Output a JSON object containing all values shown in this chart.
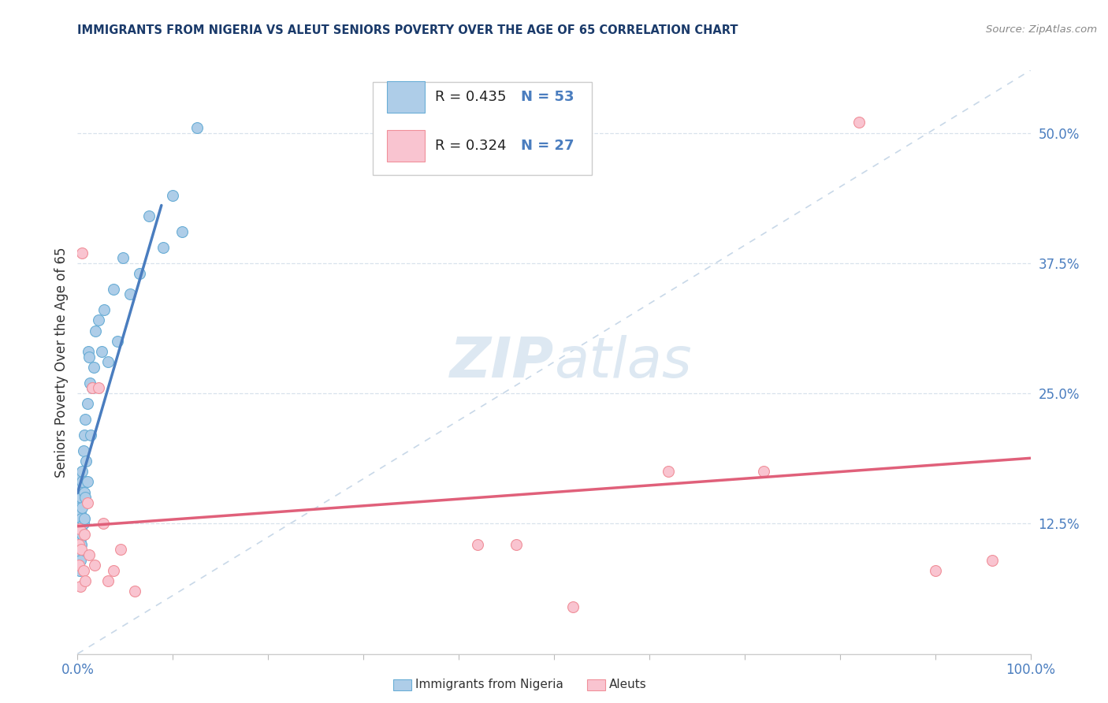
{
  "title": "IMMIGRANTS FROM NIGERIA VS ALEUT SENIORS POVERTY OVER THE AGE OF 65 CORRELATION CHART",
  "source": "Source: ZipAtlas.com",
  "ylabel": "Seniors Poverty Over the Age of 65",
  "legend_label1": "Immigrants from Nigeria",
  "legend_label2": "Aleuts",
  "legend_r1": "R = 0.435",
  "legend_n1": "N = 53",
  "legend_r2": "R = 0.324",
  "legend_n2": "N = 27",
  "color_blue_fill": "#aecde8",
  "color_blue_edge": "#6aaed6",
  "color_pink_fill": "#f9c4d0",
  "color_pink_edge": "#f0909a",
  "color_blue_line": "#4a7dbf",
  "color_pink_line": "#e0607a",
  "color_diag_line": "#c8d8e8",
  "color_grid": "#d8e2ec",
  "background_color": "#ffffff",
  "watermark_color": "#dde8f2",
  "title_color": "#1a3a6a",
  "source_color": "#888888",
  "axis_tick_color": "#4a7dbf",
  "ylabel_color": "#333333",
  "xlim": [
    0.0,
    1.0
  ],
  "ylim": [
    0.0,
    0.56
  ],
  "y_ticks": [
    0.125,
    0.25,
    0.375,
    0.5
  ],
  "y_tick_labels": [
    "12.5%",
    "25.0%",
    "37.5%",
    "50.0%"
  ],
  "nigeria_x": [
    0.001,
    0.001,
    0.001,
    0.0015,
    0.002,
    0.002,
    0.002,
    0.002,
    0.0025,
    0.003,
    0.003,
    0.003,
    0.003,
    0.003,
    0.004,
    0.004,
    0.004,
    0.004,
    0.005,
    0.005,
    0.005,
    0.005,
    0.006,
    0.006,
    0.007,
    0.007,
    0.007,
    0.008,
    0.008,
    0.009,
    0.01,
    0.01,
    0.011,
    0.012,
    0.013,
    0.014,
    0.015,
    0.017,
    0.019,
    0.022,
    0.025,
    0.028,
    0.032,
    0.038,
    0.042,
    0.048,
    0.055,
    0.065,
    0.075,
    0.09,
    0.1,
    0.11,
    0.125
  ],
  "nigeria_y": [
    0.13,
    0.115,
    0.1,
    0.145,
    0.125,
    0.095,
    0.155,
    0.08,
    0.14,
    0.16,
    0.11,
    0.135,
    0.09,
    0.17,
    0.13,
    0.15,
    0.105,
    0.12,
    0.175,
    0.14,
    0.115,
    0.165,
    0.195,
    0.125,
    0.21,
    0.155,
    0.13,
    0.225,
    0.15,
    0.185,
    0.24,
    0.165,
    0.29,
    0.285,
    0.26,
    0.21,
    0.255,
    0.275,
    0.31,
    0.32,
    0.29,
    0.33,
    0.28,
    0.35,
    0.3,
    0.38,
    0.345,
    0.365,
    0.42,
    0.39,
    0.44,
    0.405,
    0.505
  ],
  "aleut_x": [
    0.001,
    0.001,
    0.002,
    0.003,
    0.004,
    0.005,
    0.006,
    0.007,
    0.008,
    0.01,
    0.012,
    0.015,
    0.018,
    0.022,
    0.027,
    0.032,
    0.038,
    0.045,
    0.06,
    0.42,
    0.46,
    0.52,
    0.62,
    0.72,
    0.82,
    0.9,
    0.96
  ],
  "aleut_y": [
    0.105,
    0.085,
    0.12,
    0.065,
    0.1,
    0.385,
    0.08,
    0.115,
    0.07,
    0.145,
    0.095,
    0.255,
    0.085,
    0.255,
    0.125,
    0.07,
    0.08,
    0.1,
    0.06,
    0.105,
    0.105,
    0.045,
    0.175,
    0.175,
    0.51,
    0.08,
    0.09
  ],
  "nigeria_line_xlim": [
    0.0,
    0.088
  ],
  "aleut_line_xlim": [
    0.0,
    1.0
  ]
}
